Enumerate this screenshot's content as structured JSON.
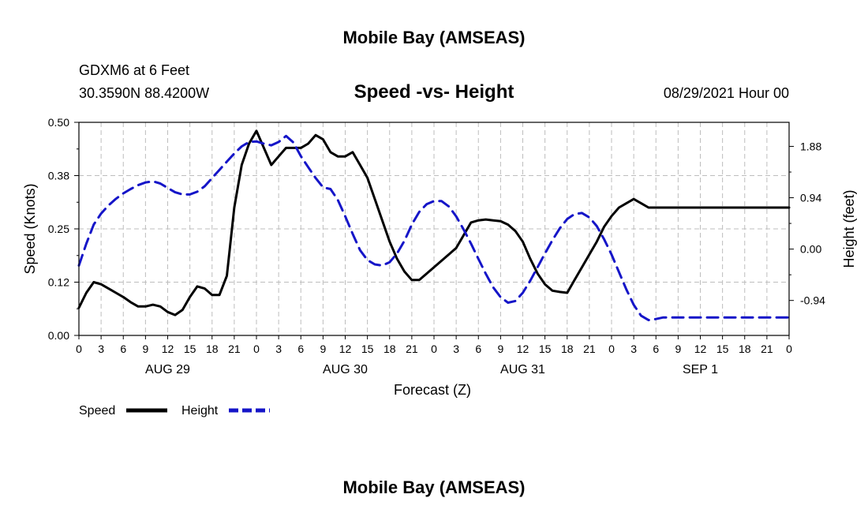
{
  "header": {
    "title_top": "Mobile Bay (AMSEAS)",
    "station": "GDXM6 at 6 Feet",
    "coords": "30.3590N  88.4200W",
    "chart_title": "Speed -vs- Height",
    "timestamp": "08/29/2021 Hour 00",
    "title_bottom": "Mobile Bay (AMSEAS)"
  },
  "chart_data": {
    "type": "line",
    "title": "Speed -vs- Height",
    "xlabel": "Forecast (Z)",
    "ylabel_left": "Speed (Knots)",
    "ylabel_right": "Height (feet)",
    "x_range_hours": [
      0,
      96
    ],
    "y_left_range": [
      0,
      0.5
    ],
    "y_right_range": [
      -1.58,
      2.32
    ],
    "y_left_ticks": [
      "0.00",
      "0.12",
      "0.25",
      "0.38",
      "0.50"
    ],
    "y_left_tick_values": [
      0,
      0.125,
      0.25,
      0.375,
      0.5
    ],
    "y_right_ticks": [
      "-0.94",
      "0.00",
      "0.94",
      "1.88"
    ],
    "y_right_tick_values": [
      -0.94,
      0,
      0.94,
      1.88
    ],
    "x_tick_labels": [
      "0",
      "3",
      "6",
      "9",
      "12",
      "15",
      "18",
      "21",
      "0",
      "3",
      "6",
      "9",
      "12",
      "15",
      "18",
      "21",
      "0",
      "3",
      "6",
      "9",
      "12",
      "15",
      "18",
      "21",
      "0",
      "3",
      "6",
      "9",
      "12",
      "15",
      "18",
      "21",
      "0"
    ],
    "day_labels": [
      {
        "label": "AUG 29",
        "hour": 12
      },
      {
        "label": "AUG 30",
        "hour": 36
      },
      {
        "label": "AUG 31",
        "hour": 60
      },
      {
        "label": "SEP 1",
        "hour": 84
      }
    ],
    "grid": true,
    "series": [
      {
        "name": "Speed",
        "axis": "left",
        "style": "solid",
        "color": "#000000",
        "x": [
          0,
          1,
          2,
          3,
          4,
          5,
          6,
          7,
          8,
          9,
          10,
          11,
          12,
          13,
          14,
          15,
          16,
          17,
          18,
          19,
          20,
          21,
          22,
          23,
          24,
          25,
          26,
          27,
          28,
          29,
          30,
          31,
          32,
          33,
          34,
          35,
          36,
          37,
          38,
          39,
          40,
          41,
          42,
          43,
          44,
          45,
          46,
          47,
          48,
          49,
          50,
          51,
          52,
          53,
          54,
          55,
          56,
          57,
          58,
          59,
          60,
          61,
          62,
          63,
          64,
          65,
          66,
          67,
          68,
          69,
          70,
          71,
          72,
          73,
          74,
          75,
          76,
          77,
          78,
          79,
          80,
          81,
          82,
          83,
          84,
          85,
          86,
          87,
          88,
          89,
          90,
          91,
          92,
          93,
          94,
          95,
          96
        ],
        "values": [
          0.065,
          0.1,
          0.125,
          0.12,
          0.11,
          0.1,
          0.09,
          0.078,
          0.068,
          0.068,
          0.072,
          0.068,
          0.055,
          0.048,
          0.06,
          0.09,
          0.115,
          0.11,
          0.095,
          0.095,
          0.14,
          0.3,
          0.4,
          0.45,
          0.48,
          0.44,
          0.4,
          0.42,
          0.44,
          0.44,
          0.44,
          0.45,
          0.47,
          0.46,
          0.43,
          0.42,
          0.42,
          0.43,
          0.4,
          0.37,
          0.32,
          0.27,
          0.22,
          0.18,
          0.15,
          0.13,
          0.13,
          0.145,
          0.16,
          0.175,
          0.19,
          0.205,
          0.235,
          0.265,
          0.27,
          0.272,
          0.27,
          0.268,
          0.26,
          0.245,
          0.22,
          0.18,
          0.145,
          0.12,
          0.105,
          0.102,
          0.1,
          0.13,
          0.16,
          0.19,
          0.22,
          0.255,
          0.28,
          0.3,
          0.31,
          0.32,
          0.31,
          0.3,
          0.3,
          0.3,
          0.3,
          0.3,
          0.3,
          0.3,
          0.3,
          0.3,
          0.3,
          0.3,
          0.3,
          0.3,
          0.3,
          0.3,
          0.3,
          0.3,
          0.3,
          0.3,
          0.3
        ]
      },
      {
        "name": "Height",
        "axis": "right",
        "style": "dashed",
        "color": "#1515c8",
        "x": [
          0,
          1,
          2,
          3,
          4,
          5,
          6,
          7,
          8,
          9,
          10,
          11,
          12,
          13,
          14,
          15,
          16,
          17,
          18,
          19,
          20,
          21,
          22,
          23,
          24,
          25,
          26,
          27,
          28,
          29,
          30,
          31,
          32,
          33,
          34,
          35,
          36,
          37,
          38,
          39,
          40,
          41,
          42,
          43,
          44,
          45,
          46,
          47,
          48,
          49,
          50,
          51,
          52,
          53,
          54,
          55,
          56,
          57,
          58,
          59,
          60,
          61,
          62,
          63,
          64,
          65,
          66,
          67,
          68,
          69,
          70,
          71,
          72,
          73,
          74,
          75,
          76,
          77,
          78,
          79,
          80,
          81,
          82,
          83,
          84,
          85,
          86,
          87,
          88,
          89,
          90,
          91,
          92,
          93,
          94,
          95,
          96
        ],
        "values": [
          -0.3,
          0.1,
          0.45,
          0.65,
          0.8,
          0.92,
          1.02,
          1.1,
          1.17,
          1.22,
          1.24,
          1.2,
          1.12,
          1.04,
          1.0,
          1.0,
          1.05,
          1.15,
          1.3,
          1.45,
          1.6,
          1.75,
          1.88,
          1.96,
          1.97,
          1.93,
          1.9,
          1.96,
          2.07,
          1.95,
          1.7,
          1.5,
          1.3,
          1.13,
          1.1,
          0.9,
          0.6,
          0.28,
          -0.02,
          -0.2,
          -0.28,
          -0.3,
          -0.24,
          -0.08,
          0.15,
          0.45,
          0.68,
          0.82,
          0.88,
          0.88,
          0.78,
          0.6,
          0.36,
          0.1,
          -0.18,
          -0.45,
          -0.7,
          -0.88,
          -0.98,
          -0.95,
          -0.8,
          -0.58,
          -0.33,
          -0.08,
          0.16,
          0.38,
          0.55,
          0.64,
          0.66,
          0.58,
          0.42,
          0.18,
          -0.1,
          -0.42,
          -0.74,
          -1.02,
          -1.22,
          -1.3,
          -1.28,
          -1.25,
          -1.25,
          -1.25,
          -1.25,
          -1.25,
          -1.25,
          -1.25,
          -1.25,
          -1.25,
          -1.25,
          -1.25,
          -1.25,
          -1.25,
          -1.25,
          -1.25,
          -1.25,
          -1.25,
          -1.25
        ]
      }
    ]
  },
  "legend": {
    "speed_label": "Speed",
    "height_label": "Height"
  }
}
